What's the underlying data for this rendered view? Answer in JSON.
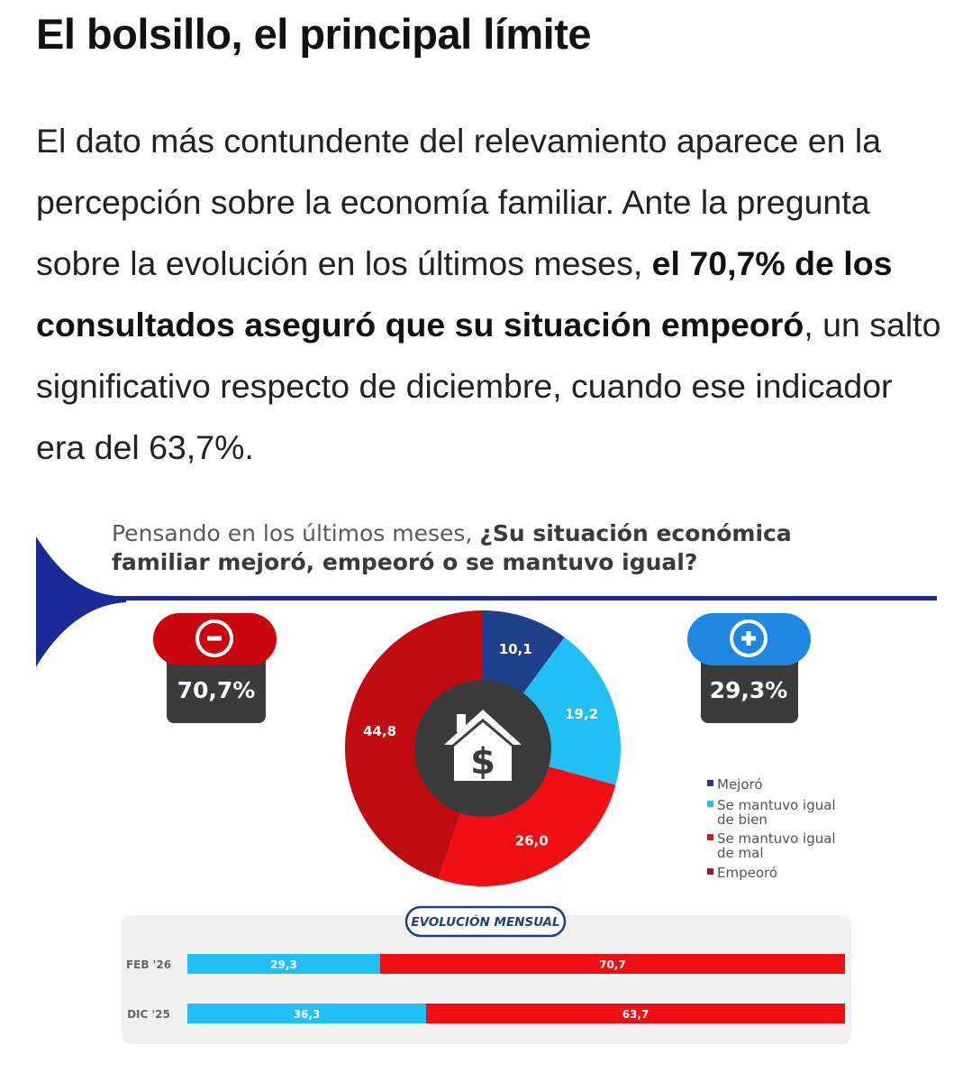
{
  "article": {
    "headline": "El bolsillo, el principal límite",
    "paragraph": {
      "intro": "El dato más contundente del relevamiento aparece en la percepción sobre la economía familiar. Ante la pregunta sobre la evolución en los últimos meses, ",
      "highlight": "el 70,7% de los consultados aseguró que su situación empeoró",
      "outro": ", un salto significativo respecto de diciembre, cuando ese indicador era del 63,7%."
    }
  },
  "infographic": {
    "question_normal": "Pensando en los últimos meses, ",
    "question_bold_line1": "¿Su situación económica",
    "question_bold_line2": "familiar mejoró, empeoró o se mantuvo igual?",
    "negative_total": "70,7%",
    "positive_total": "29,3%",
    "colors": {
      "navy": "#1f3f8a",
      "cyan": "#22bff5",
      "red": "#ef0e14",
      "darkred": "#be0c12",
      "dark": "#3b3b3b",
      "line": "#1a2a99"
    }
  },
  "chart_data": [
    {
      "type": "pie",
      "values": [
        10.1,
        19.2,
        26.0,
        44.8
      ],
      "value_labels": [
        "10,1",
        "19,2",
        "26,0",
        "44,8"
      ],
      "legend": [
        {
          "label_line1": "Mejoró",
          "label_line2": ""
        },
        {
          "label_line1": "Se mantuvo igual",
          "label_line2": "de bien"
        },
        {
          "label_line1": "Se mantuvo igual",
          "label_line2": "de mal"
        },
        {
          "label_line1": "Empeoró",
          "label_line2": ""
        }
      ],
      "legend_position": "right"
    },
    {
      "type": "bar",
      "stacked": true,
      "title": "EVOLUCIÓN MENSUAL",
      "categories": [
        "FEB '26",
        "DIC '25"
      ],
      "series": [
        {
          "values": [
            29.3,
            36.3
          ],
          "labels": [
            "29,3",
            "36,3"
          ]
        },
        {
          "values": [
            70.7,
            63.7
          ],
          "labels": [
            "70,7",
            "63,7"
          ]
        }
      ]
    }
  ]
}
